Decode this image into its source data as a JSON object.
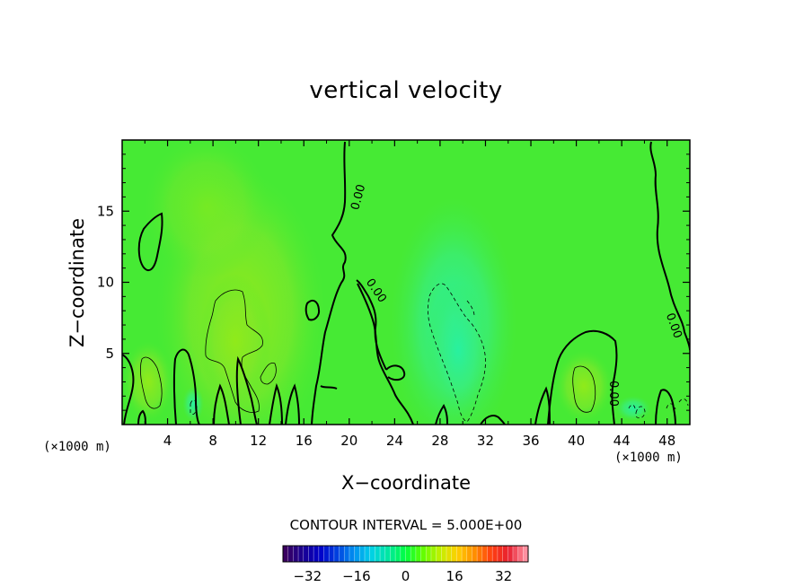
{
  "title": "vertical velocity",
  "contour_interval_text": "CONTOUR INTERVAL = 5.000E+00",
  "chart_data": {
    "type": "heatmap",
    "title": "vertical velocity",
    "xlabel": "X−coordinate",
    "ylabel": "Z−coordinate",
    "x_unit": "(×1000 m)",
    "z_unit": "(×1000 m)",
    "xlim": [
      0,
      50
    ],
    "ylim": [
      0,
      20
    ],
    "x_ticks": [
      4,
      8,
      12,
      16,
      20,
      24,
      28,
      32,
      36,
      40,
      44,
      48
    ],
    "y_ticks": [
      5,
      10,
      15
    ],
    "contour_interval": 5.0,
    "zero_contour_label": "0.00",
    "colorbar": {
      "range": [
        -40,
        40
      ],
      "ticks": [
        -32,
        -16,
        0,
        16,
        32
      ],
      "colors": [
        "#3a0060",
        "#1a0090",
        "#0000c8",
        "#0040e0",
        "#0090f0",
        "#00d0e8",
        "#00e8a0",
        "#00ff40",
        "#60ff00",
        "#c0f000",
        "#ffd000",
        "#ff9000",
        "#ff4010",
        "#e82030",
        "#ff90a0"
      ]
    }
  }
}
